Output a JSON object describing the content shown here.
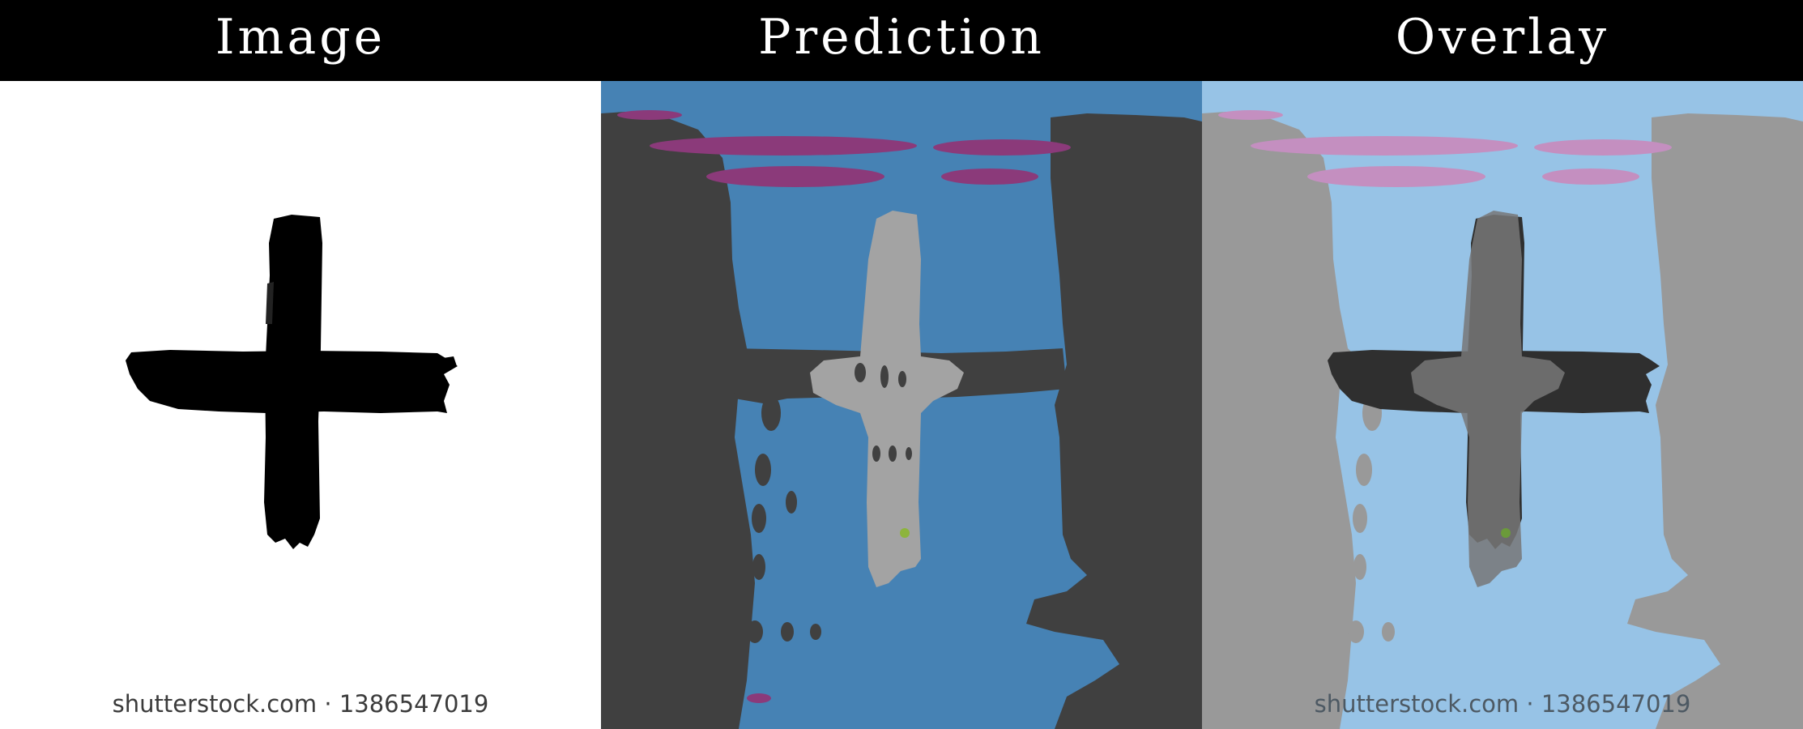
{
  "header": {
    "titles": [
      "Image",
      "Prediction",
      "Overlay"
    ]
  },
  "watermark": {
    "text": "shutterstock.com · 1386547019"
  },
  "colors": {
    "header_bg": "#000000",
    "title_text": "#ffffff",
    "image_bg": "#ffffff",
    "cross": "#000000",
    "prediction_background": "#4682b4",
    "prediction_dark": "#404040",
    "prediction_light_gray": "#a3a3a3",
    "prediction_magenta": "#8b3a7a",
    "prediction_green": "#8db43c",
    "overlay_background": "#97c3e6",
    "overlay_dark": "#999999",
    "overlay_cross": "#2f2f2f",
    "overlay_light_gray": "#777777",
    "overlay_magenta": "#c48fc0"
  }
}
